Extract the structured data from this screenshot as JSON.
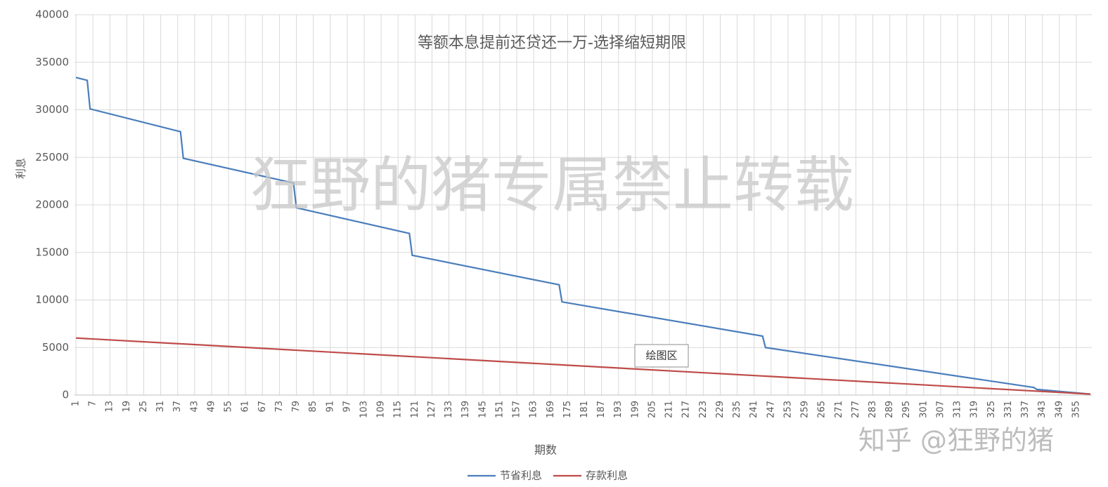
{
  "chart_data": {
    "type": "line",
    "title": "等额本息提前还贷还一万-选择缩短期限",
    "xlabel": "期数",
    "ylabel": "利息",
    "x": [
      1,
      5,
      6,
      38,
      39,
      78,
      79,
      119,
      120,
      172,
      173,
      244,
      245,
      340,
      341,
      360
    ],
    "series": [
      {
        "name": "节省利息",
        "color": "#4a7ebb",
        "values": [
          33400,
          33100,
          30100,
          27700,
          24900,
          22300,
          19700,
          17000,
          14700,
          11600,
          9800,
          6200,
          5000,
          800,
          600,
          100
        ]
      },
      {
        "name": "存款利息",
        "color": "#be4b48",
        "values": [
          6000,
          5934,
          5918,
          5392,
          5376,
          4735,
          4718,
          4061,
          4044,
          3190,
          3173,
          2007,
          1990,
          429,
          413,
          100
        ]
      }
    ],
    "xlim": [
      0.5,
      360.5
    ],
    "xticks": [
      1,
      7,
      13,
      19,
      25,
      31,
      37,
      43,
      49,
      55,
      61,
      67,
      73,
      79,
      85,
      91,
      97,
      103,
      109,
      115,
      121,
      127,
      133,
      139,
      145,
      151,
      157,
      163,
      169,
      175,
      181,
      187,
      193,
      199,
      205,
      211,
      217,
      223,
      229,
      235,
      241,
      247,
      253,
      259,
      265,
      271,
      277,
      283,
      289,
      295,
      301,
      307,
      313,
      319,
      325,
      331,
      337,
      343,
      349,
      355
    ],
    "ylim": [
      0,
      40000
    ],
    "yticks": [
      0,
      5000,
      10000,
      15000,
      20000,
      25000,
      30000,
      35000,
      40000
    ],
    "grid": true,
    "legend": "bottom",
    "annotations": [
      "绘图区",
      "狂野的猪专属禁止转载",
      "知乎 @狂野的猪"
    ]
  }
}
